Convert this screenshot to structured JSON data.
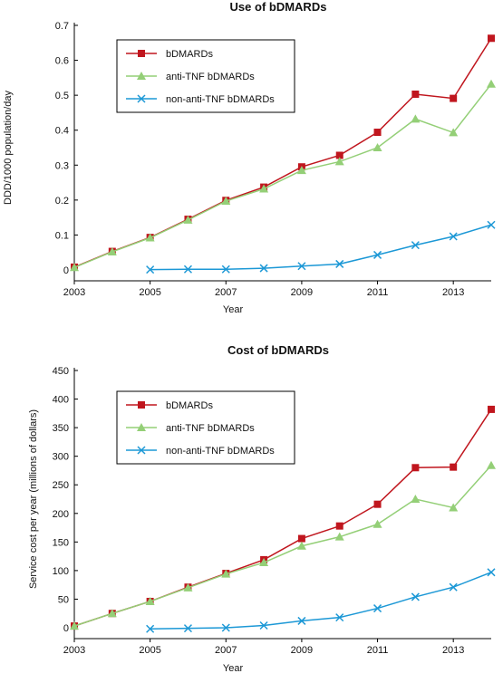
{
  "colors": {
    "bdmards": "#c0161e",
    "anti_tnf": "#94cf77",
    "non_anti_tnf": "#1c98d6",
    "axis": "#000000"
  },
  "chart_data": [
    {
      "type": "line",
      "title": "Use of bDMARDs",
      "xlabel": "Year",
      "ylabel": "DDD/1000 population/day",
      "xlim": [
        2003,
        2014
      ],
      "ylim": [
        0,
        0.7
      ],
      "xticks": [
        2003,
        2005,
        2007,
        2009,
        2011,
        2013
      ],
      "xtick_labels": [
        "2003",
        "2005",
        "2007",
        "2009",
        "2011",
        "2013"
      ],
      "yticks": [
        0,
        0.1,
        0.2,
        0.3,
        0.4,
        0.5,
        0.6,
        0.7
      ],
      "ytick_labels": [
        "0",
        "0.1",
        "0.2",
        "0.3",
        "0.4",
        "0.5",
        "0.6",
        "0.7"
      ],
      "legend_position": "top-left",
      "series": [
        {
          "name": "bDMARDs",
          "marker": "square",
          "color": "#c0161e",
          "x": [
            2003,
            2004,
            2005,
            2006,
            2007,
            2008,
            2009,
            2010,
            2011,
            2012,
            2013,
            2014
          ],
          "values": [
            0.008,
            0.053,
            0.093,
            0.145,
            0.199,
            0.237,
            0.295,
            0.328,
            0.394,
            0.503,
            0.491,
            0.663
          ]
        },
        {
          "name": "anti-TNF bDMARDs",
          "marker": "triangle",
          "color": "#94cf77",
          "x": [
            2003,
            2004,
            2005,
            2006,
            2007,
            2008,
            2009,
            2010,
            2011,
            2012,
            2013,
            2014
          ],
          "values": [
            0.007,
            0.052,
            0.092,
            0.143,
            0.197,
            0.232,
            0.285,
            0.31,
            0.35,
            0.432,
            0.393,
            0.532
          ]
        },
        {
          "name": "non-anti-TNF bDMARDs",
          "marker": "x",
          "color": "#1c98d6",
          "x": [
            2005,
            2006,
            2007,
            2008,
            2009,
            2010,
            2011,
            2012,
            2013,
            2014
          ],
          "values": [
            0.001,
            0.002,
            0.002,
            0.005,
            0.011,
            0.017,
            0.043,
            0.071,
            0.096,
            0.129
          ]
        }
      ]
    },
    {
      "type": "line",
      "title": "Cost of bDMARDs",
      "xlabel": "Year",
      "ylabel": "Service cost per year (millions of dollars)",
      "xlim": [
        2003,
        2014
      ],
      "ylim": [
        0,
        450
      ],
      "xticks": [
        2003,
        2005,
        2007,
        2009,
        2011,
        2013
      ],
      "xtick_labels": [
        "2003",
        "2005",
        "2007",
        "2009",
        "2011",
        "2013"
      ],
      "yticks": [
        0,
        50,
        100,
        150,
        200,
        250,
        300,
        350,
        400,
        450
      ],
      "ytick_labels": [
        "0",
        "50",
        "100",
        "150",
        "200",
        "250",
        "300",
        "350",
        "400",
        "450"
      ],
      "legend_position": "top-left",
      "series": [
        {
          "name": "bDMARDs",
          "marker": "square",
          "color": "#c0161e",
          "x": [
            2003,
            2004,
            2005,
            2006,
            2007,
            2008,
            2009,
            2010,
            2011,
            2012,
            2013,
            2014
          ],
          "values": [
            3,
            25,
            46,
            71,
            95,
            119,
            156,
            178,
            216,
            280,
            281,
            382
          ]
        },
        {
          "name": "anti-TNF bDMARDs",
          "marker": "triangle",
          "color": "#94cf77",
          "x": [
            2003,
            2004,
            2005,
            2006,
            2007,
            2008,
            2009,
            2010,
            2011,
            2012,
            2013,
            2014
          ],
          "values": [
            3,
            25,
            46,
            70,
            94,
            114,
            143,
            159,
            181,
            225,
            210,
            284
          ]
        },
        {
          "name": "non-anti-TNF bDMARDs",
          "marker": "x",
          "color": "#1c98d6",
          "x": [
            2005,
            2006,
            2007,
            2008,
            2009,
            2010,
            2011,
            2012,
            2013,
            2014
          ],
          "values": [
            -2,
            -1,
            0,
            4,
            12,
            18,
            34,
            54,
            71,
            97
          ]
        }
      ]
    }
  ]
}
